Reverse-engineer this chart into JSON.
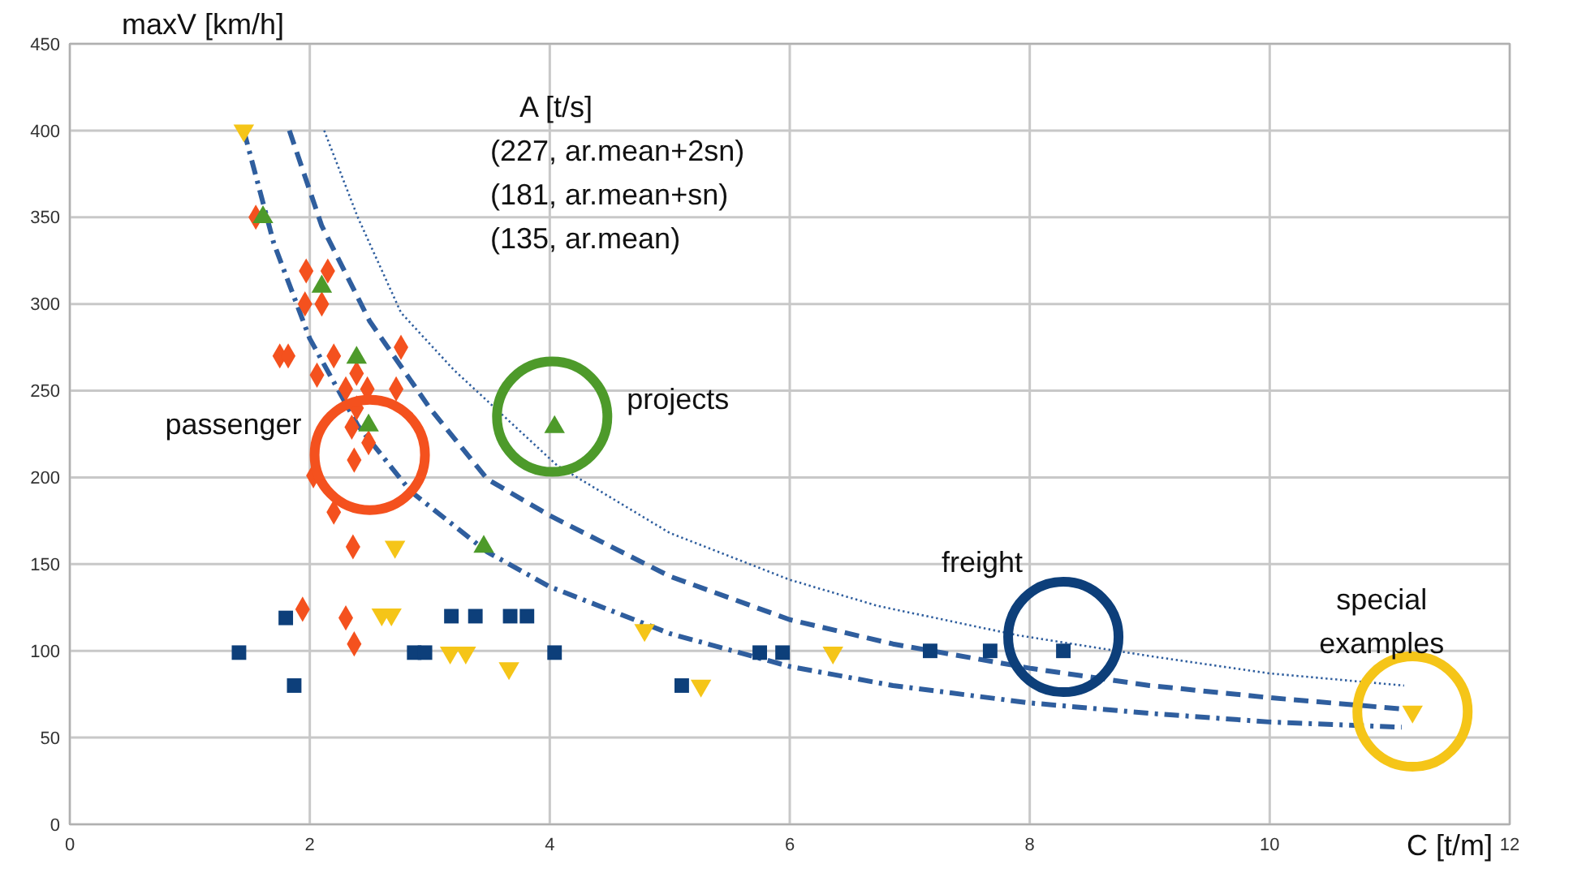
{
  "chart_data": {
    "type": "scatter",
    "xlabel": "C [t/m]",
    "ylabel": "maxV [km/h]",
    "xlim": [
      0,
      12
    ],
    "ylim": [
      0,
      450
    ],
    "xticks": [
      0,
      2,
      4,
      6,
      8,
      10,
      12
    ],
    "yticks": [
      0,
      50,
      100,
      150,
      200,
      250,
      300,
      350,
      400,
      450
    ],
    "grid": true,
    "series": [
      {
        "type": "line",
        "color": "#2f5e9e",
        "line_style": "dotted",
        "x": [
          2.12,
          2.4,
          2.76,
          3.2,
          4.06,
          5,
          6,
          6.73,
          7.9,
          9,
          10,
          11.12
        ],
        "values": [
          400,
          350,
          295,
          262,
          207,
          168,
          141,
          126,
          109,
          97,
          87,
          80
        ]
      },
      {
        "type": "line",
        "color": "#2f5e9e",
        "line_style": "dashed",
        "x": [
          1.83,
          2.1,
          2.5,
          3,
          3.48,
          4,
          5,
          6,
          6.86,
          8,
          9,
          10,
          11.19
        ],
        "values": [
          400,
          345,
          290,
          240,
          199,
          178,
          143,
          118,
          104,
          90,
          80,
          73,
          66
        ]
      },
      {
        "type": "line",
        "color": "#2f5e9e",
        "line_style": "dashdot",
        "x": [
          1.45,
          1.7,
          2.0,
          2.4,
          2.84,
          3.48,
          4,
          5,
          6,
          6.86,
          8,
          9,
          10,
          11.1
        ],
        "values": [
          400,
          335,
          280,
          230,
          192,
          157,
          137,
          110,
          91,
          80,
          70,
          64,
          59,
          56
        ]
      },
      {
        "color": "#f4511e",
        "marker": "diamond",
        "x": [
          1.55,
          1.97,
          2.15,
          1.96,
          2.1,
          1.75,
          1.82,
          2.2,
          2.76,
          2.39,
          2.06,
          2.3,
          2.48,
          2.72,
          2.39,
          2.35,
          2.49,
          2.37,
          2.03,
          2.2,
          2.36,
          1.94,
          2.3,
          2.37
        ],
        "values": [
          350,
          319,
          319,
          300,
          300,
          270,
          270,
          270,
          275,
          260,
          259,
          251,
          251,
          251,
          240,
          229,
          220,
          210,
          201,
          180,
          160,
          124,
          119,
          104
        ]
      },
      {
        "color": "#4d9a2a",
        "marker": "triangle",
        "x": [
          1.61,
          2.1,
          2.39,
          2.49,
          3.45,
          4.04
        ],
        "values": [
          350,
          310,
          269,
          230,
          160,
          229
        ]
      },
      {
        "color": "#0d3f7a",
        "marker": "square",
        "x": [
          1.41,
          1.8,
          1.87,
          2.87,
          2.96,
          3.18,
          3.38,
          3.67,
          3.81,
          4.04,
          5.1,
          5.75,
          5.94,
          7.17,
          7.67,
          8.28
        ],
        "values": [
          99,
          119,
          80,
          99,
          99,
          120,
          120,
          120,
          120,
          99,
          80,
          99,
          99,
          100,
          100,
          100
        ]
      },
      {
        "color": "#f5c518",
        "marker": "triangle-down",
        "x": [
          1.45,
          2.71,
          2.6,
          2.68,
          3.17,
          3.3,
          3.66,
          4.79,
          5.26,
          6.36,
          11.19
        ],
        "values": [
          400,
          160,
          121,
          121,
          99,
          99,
          90,
          112,
          80,
          99,
          65
        ]
      }
    ],
    "annotations": [
      "A [t/s]",
      "(227, ar.mean+2sn)",
      "(181, ar.mean+sn)",
      "(135, ar.mean)",
      {
        "text": "passenger",
        "x": 2.5,
        "y": 213
      },
      {
        "text": "projects",
        "x": 4.02,
        "y": 235
      },
      {
        "text": "freight",
        "x": 8.28,
        "y": 108
      },
      {
        "text": "special examples",
        "x": 11.19,
        "y": 65
      }
    ]
  }
}
